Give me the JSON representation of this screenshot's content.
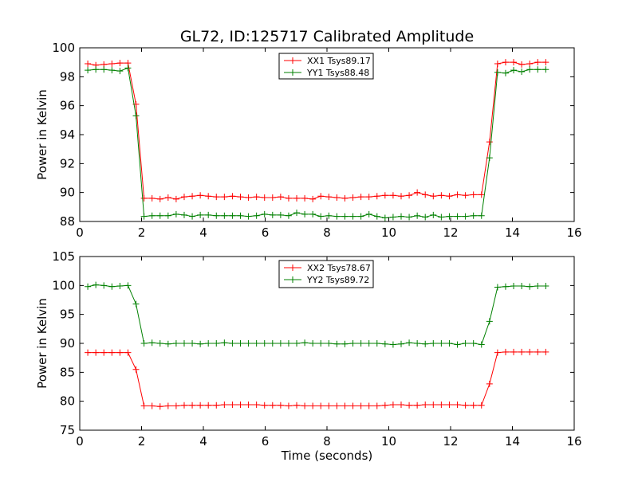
{
  "title": "GL72, ID:125717 Calibrated Amplitude",
  "chart_data": [
    {
      "type": "line",
      "title": "GL72, ID:125717 Calibrated Amplitude",
      "xlabel": "",
      "ylabel": "Power in Kelvin",
      "xlim": [
        0,
        16
      ],
      "ylim": [
        88,
        100
      ],
      "xticks": [
        0,
        2,
        4,
        6,
        8,
        10,
        12,
        14,
        16
      ],
      "yticks": [
        88,
        90,
        92,
        94,
        96,
        98,
        100
      ],
      "legend_position": "top-center",
      "marker": "+",
      "x": [
        0.26,
        0.52,
        0.78,
        1.04,
        1.3,
        1.56,
        1.82,
        2.08,
        2.34,
        2.6,
        2.86,
        3.12,
        3.38,
        3.64,
        3.9,
        4.16,
        4.42,
        4.68,
        4.94,
        5.2,
        5.46,
        5.72,
        5.98,
        6.24,
        6.5,
        6.76,
        7.02,
        7.28,
        7.54,
        7.8,
        8.06,
        8.32,
        8.58,
        8.84,
        9.1,
        9.36,
        9.62,
        9.88,
        10.14,
        10.4,
        10.66,
        10.92,
        11.18,
        11.44,
        11.7,
        11.96,
        12.22,
        12.48,
        12.74,
        13.0,
        13.26,
        13.52,
        13.78,
        14.04,
        14.3,
        14.56,
        14.82,
        15.08
      ],
      "series": [
        {
          "name": "XX1 Tsys89.17",
          "color": "#ff0000",
          "values": [
            98.9,
            98.8,
            98.85,
            98.9,
            98.95,
            98.95,
            96.1,
            89.6,
            89.6,
            89.55,
            89.65,
            89.55,
            89.7,
            89.75,
            89.8,
            89.75,
            89.7,
            89.7,
            89.75,
            89.7,
            89.65,
            89.7,
            89.65,
            89.65,
            89.7,
            89.6,
            89.6,
            89.6,
            89.55,
            89.75,
            89.7,
            89.65,
            89.6,
            89.65,
            89.7,
            89.7,
            89.75,
            89.8,
            89.8,
            89.75,
            89.8,
            90.0,
            89.85,
            89.75,
            89.8,
            89.75,
            89.85,
            89.8,
            89.85,
            89.85,
            93.5,
            98.9,
            99.0,
            99.0,
            98.85,
            98.9,
            99.0,
            99.0
          ]
        },
        {
          "name": "YY1 Tsys88.48",
          "color": "#008000",
          "values": [
            98.45,
            98.5,
            98.5,
            98.45,
            98.4,
            98.6,
            95.3,
            88.35,
            88.4,
            88.4,
            88.4,
            88.5,
            88.45,
            88.35,
            88.45,
            88.45,
            88.4,
            88.4,
            88.4,
            88.4,
            88.35,
            88.4,
            88.5,
            88.45,
            88.45,
            88.4,
            88.6,
            88.5,
            88.5,
            88.35,
            88.4,
            88.35,
            88.35,
            88.35,
            88.35,
            88.5,
            88.35,
            88.25,
            88.3,
            88.35,
            88.3,
            88.4,
            88.3,
            88.45,
            88.3,
            88.35,
            88.35,
            88.35,
            88.4,
            88.4,
            92.4,
            98.3,
            98.25,
            98.45,
            98.35,
            98.5,
            98.5,
            98.5
          ]
        }
      ]
    },
    {
      "type": "line",
      "title": "",
      "xlabel": "Time (seconds)",
      "ylabel": "Power in Kelvin",
      "xlim": [
        0,
        16
      ],
      "ylim": [
        75,
        105
      ],
      "xticks": [
        0,
        2,
        4,
        6,
        8,
        10,
        12,
        14,
        16
      ],
      "yticks": [
        75,
        80,
        85,
        90,
        95,
        100,
        105
      ],
      "legend_position": "top-center",
      "marker": "+",
      "x": [
        0.26,
        0.52,
        0.78,
        1.04,
        1.3,
        1.56,
        1.82,
        2.08,
        2.34,
        2.6,
        2.86,
        3.12,
        3.38,
        3.64,
        3.9,
        4.16,
        4.42,
        4.68,
        4.94,
        5.2,
        5.46,
        5.72,
        5.98,
        6.24,
        6.5,
        6.76,
        7.02,
        7.28,
        7.54,
        7.8,
        8.06,
        8.32,
        8.58,
        8.84,
        9.1,
        9.36,
        9.62,
        9.88,
        10.14,
        10.4,
        10.66,
        10.92,
        11.18,
        11.44,
        11.7,
        11.96,
        12.22,
        12.48,
        12.74,
        13.0,
        13.26,
        13.52,
        13.78,
        14.04,
        14.3,
        14.56,
        14.82,
        15.08
      ],
      "series": [
        {
          "name": "XX2 Tsys78.67",
          "color": "#ff0000",
          "values": [
            88.4,
            88.4,
            88.4,
            88.4,
            88.4,
            88.4,
            85.5,
            79.2,
            79.2,
            79.1,
            79.2,
            79.2,
            79.3,
            79.3,
            79.3,
            79.3,
            79.3,
            79.4,
            79.4,
            79.4,
            79.4,
            79.4,
            79.3,
            79.3,
            79.3,
            79.2,
            79.3,
            79.2,
            79.2,
            79.2,
            79.2,
            79.2,
            79.2,
            79.2,
            79.2,
            79.2,
            79.2,
            79.3,
            79.4,
            79.4,
            79.3,
            79.3,
            79.4,
            79.4,
            79.4,
            79.4,
            79.4,
            79.3,
            79.3,
            79.3,
            83.0,
            88.4,
            88.5,
            88.5,
            88.5,
            88.5,
            88.5,
            88.5
          ]
        },
        {
          "name": "YY2 Tsys89.72",
          "color": "#008000",
          "values": [
            99.8,
            100.1,
            100.0,
            99.8,
            99.9,
            100.0,
            96.8,
            90.0,
            90.1,
            90.0,
            89.9,
            90.0,
            90.0,
            90.0,
            89.9,
            90.0,
            90.0,
            90.1,
            90.0,
            90.0,
            90.0,
            90.0,
            90.0,
            90.0,
            90.0,
            90.0,
            90.0,
            90.1,
            90.0,
            90.0,
            90.0,
            89.9,
            89.9,
            90.0,
            90.0,
            90.0,
            90.0,
            89.9,
            89.8,
            89.9,
            90.1,
            90.0,
            89.9,
            90.0,
            90.0,
            90.0,
            89.8,
            90.0,
            90.0,
            89.8,
            93.8,
            99.7,
            99.8,
            99.9,
            99.9,
            99.8,
            99.9,
            99.9
          ]
        }
      ]
    }
  ]
}
